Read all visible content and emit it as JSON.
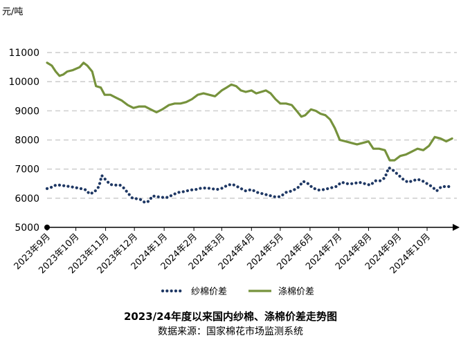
{
  "chart_data": {
    "type": "line",
    "title": "2023/24年度以来国内纱棉、涤棉价差走势图",
    "source": "数据来源：国家棉花市场监测系统",
    "unit_label": "元/吨",
    "ylim": [
      5000,
      11500
    ],
    "yticks": [
      "11000",
      "10000",
      "9000",
      "8000",
      "7000",
      "6000",
      "5000"
    ],
    "xlim": [
      "2023-09-01",
      "2024-11-01"
    ],
    "xticks": [
      {
        "date": "2023-09-01",
        "label": "2023年9月"
      },
      {
        "date": "2023-10-01",
        "label": "2023年10月"
      },
      {
        "date": "2023-11-01",
        "label": "2023年11月"
      },
      {
        "date": "2023-12-01",
        "label": "2023年12月"
      },
      {
        "date": "2024-01-01",
        "label": "2024年1月"
      },
      {
        "date": "2024-02-01",
        "label": "2024年2月"
      },
      {
        "date": "2024-03-01",
        "label": "2024年3月"
      },
      {
        "date": "2024-04-01",
        "label": "2024年4月"
      },
      {
        "date": "2024-05-01",
        "label": "2024年5月"
      },
      {
        "date": "2024-06-01",
        "label": "2024年6月"
      },
      {
        "date": "2024-07-01",
        "label": "2024年7月"
      },
      {
        "date": "2024-08-01",
        "label": "2024年8月"
      },
      {
        "date": "2024-09-01",
        "label": "2024年9月"
      },
      {
        "date": "2024-10-01",
        "label": "2024年10月"
      }
    ],
    "grid": true,
    "legend_position": "bottom",
    "series": [
      {
        "name": "纱棉价差",
        "style": "dotted",
        "color": "#1f3864",
        "points": [
          [
            "2023-09-01",
            6330
          ],
          [
            "2023-09-06",
            6380
          ],
          [
            "2023-09-10",
            6450
          ],
          [
            "2023-09-15",
            6450
          ],
          [
            "2023-09-20",
            6420
          ],
          [
            "2023-09-25",
            6400
          ],
          [
            "2023-10-08",
            6320
          ],
          [
            "2023-10-12",
            6280
          ],
          [
            "2023-10-15",
            6150
          ],
          [
            "2023-10-20",
            6200
          ],
          [
            "2023-10-25",
            6400
          ],
          [
            "2023-10-28",
            6780
          ],
          [
            "2023-11-02",
            6600
          ],
          [
            "2023-11-06",
            6470
          ],
          [
            "2023-11-12",
            6450
          ],
          [
            "2023-11-16",
            6450
          ],
          [
            "2023-11-20",
            6350
          ],
          [
            "2023-11-25",
            6150
          ],
          [
            "2023-11-29",
            6000
          ],
          [
            "2023-12-04",
            5980
          ],
          [
            "2023-12-08",
            5950
          ],
          [
            "2023-12-12",
            5850
          ],
          [
            "2023-12-16",
            5900
          ],
          [
            "2023-12-20",
            6080
          ],
          [
            "2023-12-25",
            6050
          ],
          [
            "2023-12-30",
            6030
          ],
          [
            "2024-01-05",
            6030
          ],
          [
            "2024-01-10",
            6120
          ],
          [
            "2024-01-16",
            6200
          ],
          [
            "2024-01-22",
            6230
          ],
          [
            "2024-01-28",
            6280
          ],
          [
            "2024-02-03",
            6300
          ],
          [
            "2024-02-09",
            6350
          ],
          [
            "2024-02-15",
            6350
          ],
          [
            "2024-02-21",
            6320
          ],
          [
            "2024-02-25",
            6300
          ],
          [
            "2024-03-02",
            6350
          ],
          [
            "2024-03-07",
            6450
          ],
          [
            "2024-03-12",
            6480
          ],
          [
            "2024-03-16",
            6420
          ],
          [
            "2024-03-20",
            6350
          ],
          [
            "2024-03-26",
            6250
          ],
          [
            "2024-04-01",
            6300
          ],
          [
            "2024-04-07",
            6200
          ],
          [
            "2024-04-13",
            6150
          ],
          [
            "2024-04-19",
            6100
          ],
          [
            "2024-04-25",
            6050
          ],
          [
            "2024-05-01",
            6050
          ],
          [
            "2024-05-07",
            6200
          ],
          [
            "2024-05-13",
            6250
          ],
          [
            "2024-05-19",
            6350
          ],
          [
            "2024-05-25",
            6580
          ],
          [
            "2024-05-30",
            6500
          ],
          [
            "2024-06-04",
            6350
          ],
          [
            "2024-06-10",
            6280
          ],
          [
            "2024-06-16",
            6300
          ],
          [
            "2024-06-22",
            6350
          ],
          [
            "2024-06-28",
            6400
          ],
          [
            "2024-07-04",
            6550
          ],
          [
            "2024-07-10",
            6500
          ],
          [
            "2024-07-16",
            6500
          ],
          [
            "2024-07-22",
            6550
          ],
          [
            "2024-07-28",
            6500
          ],
          [
            "2024-08-03",
            6450
          ],
          [
            "2024-08-08",
            6600
          ],
          [
            "2024-08-13",
            6600
          ],
          [
            "2024-08-18",
            6700
          ],
          [
            "2024-08-22",
            7050
          ],
          [
            "2024-08-27",
            6950
          ],
          [
            "2024-09-01",
            6800
          ],
          [
            "2024-09-06",
            6650
          ],
          [
            "2024-09-11",
            6550
          ],
          [
            "2024-09-16",
            6600
          ],
          [
            "2024-09-21",
            6650
          ],
          [
            "2024-09-26",
            6600
          ],
          [
            "2024-10-01",
            6500
          ],
          [
            "2024-10-06",
            6400
          ],
          [
            "2024-10-11",
            6250
          ],
          [
            "2024-10-16",
            6400
          ],
          [
            "2024-10-21",
            6400
          ],
          [
            "2024-10-26",
            6400
          ]
        ]
      },
      {
        "name": "涤棉价差",
        "style": "solid",
        "color": "#76923c",
        "points": [
          [
            "2023-09-01",
            10650
          ],
          [
            "2023-09-06",
            10550
          ],
          [
            "2023-09-10",
            10350
          ],
          [
            "2023-09-14",
            10200
          ],
          [
            "2023-09-18",
            10250
          ],
          [
            "2023-09-22",
            10350
          ],
          [
            "2023-09-28",
            10400
          ],
          [
            "2023-10-05",
            10500
          ],
          [
            "2023-10-09",
            10650
          ],
          [
            "2023-10-13",
            10550
          ],
          [
            "2023-10-18",
            10350
          ],
          [
            "2023-10-22",
            9850
          ],
          [
            "2023-10-27",
            9800
          ],
          [
            "2023-10-31",
            9550
          ],
          [
            "2023-11-06",
            9550
          ],
          [
            "2023-11-12",
            9450
          ],
          [
            "2023-11-18",
            9350
          ],
          [
            "2023-11-24",
            9200
          ],
          [
            "2023-11-30",
            9100
          ],
          [
            "2023-12-06",
            9150
          ],
          [
            "2023-12-12",
            9150
          ],
          [
            "2023-12-18",
            9050
          ],
          [
            "2023-12-24",
            8950
          ],
          [
            "2023-12-30",
            9050
          ],
          [
            "2024-01-06",
            9200
          ],
          [
            "2024-01-12",
            9250
          ],
          [
            "2024-01-18",
            9250
          ],
          [
            "2024-01-24",
            9300
          ],
          [
            "2024-01-30",
            9400
          ],
          [
            "2024-02-05",
            9550
          ],
          [
            "2024-02-11",
            9600
          ],
          [
            "2024-02-17",
            9550
          ],
          [
            "2024-02-23",
            9500
          ],
          [
            "2024-03-01",
            9700
          ],
          [
            "2024-03-06",
            9800
          ],
          [
            "2024-03-11",
            9900
          ],
          [
            "2024-03-16",
            9850
          ],
          [
            "2024-03-21",
            9700
          ],
          [
            "2024-03-26",
            9650
          ],
          [
            "2024-04-01",
            9700
          ],
          [
            "2024-04-06",
            9600
          ],
          [
            "2024-04-11",
            9650
          ],
          [
            "2024-04-16",
            9700
          ],
          [
            "2024-04-21",
            9600
          ],
          [
            "2024-04-26",
            9400
          ],
          [
            "2024-05-01",
            9250
          ],
          [
            "2024-05-07",
            9250
          ],
          [
            "2024-05-13",
            9200
          ],
          [
            "2024-05-18",
            9000
          ],
          [
            "2024-05-23",
            8800
          ],
          [
            "2024-05-27",
            8850
          ],
          [
            "2024-06-02",
            9050
          ],
          [
            "2024-06-07",
            9000
          ],
          [
            "2024-06-12",
            8900
          ],
          [
            "2024-06-17",
            8850
          ],
          [
            "2024-06-22",
            8700
          ],
          [
            "2024-06-27",
            8400
          ],
          [
            "2024-07-02",
            8000
          ],
          [
            "2024-07-08",
            7950
          ],
          [
            "2024-07-14",
            7900
          ],
          [
            "2024-07-20",
            7850
          ],
          [
            "2024-07-26",
            7900
          ],
          [
            "2024-08-01",
            7950
          ],
          [
            "2024-08-06",
            7700
          ],
          [
            "2024-08-12",
            7700
          ],
          [
            "2024-08-18",
            7650
          ],
          [
            "2024-08-23",
            7300
          ],
          [
            "2024-08-28",
            7300
          ],
          [
            "2024-09-03",
            7450
          ],
          [
            "2024-09-09",
            7500
          ],
          [
            "2024-09-15",
            7600
          ],
          [
            "2024-09-21",
            7700
          ],
          [
            "2024-09-27",
            7650
          ],
          [
            "2024-10-03",
            7800
          ],
          [
            "2024-10-09",
            8100
          ],
          [
            "2024-10-15",
            8050
          ],
          [
            "2024-10-21",
            7950
          ],
          [
            "2024-10-27",
            8050
          ]
        ]
      }
    ]
  }
}
